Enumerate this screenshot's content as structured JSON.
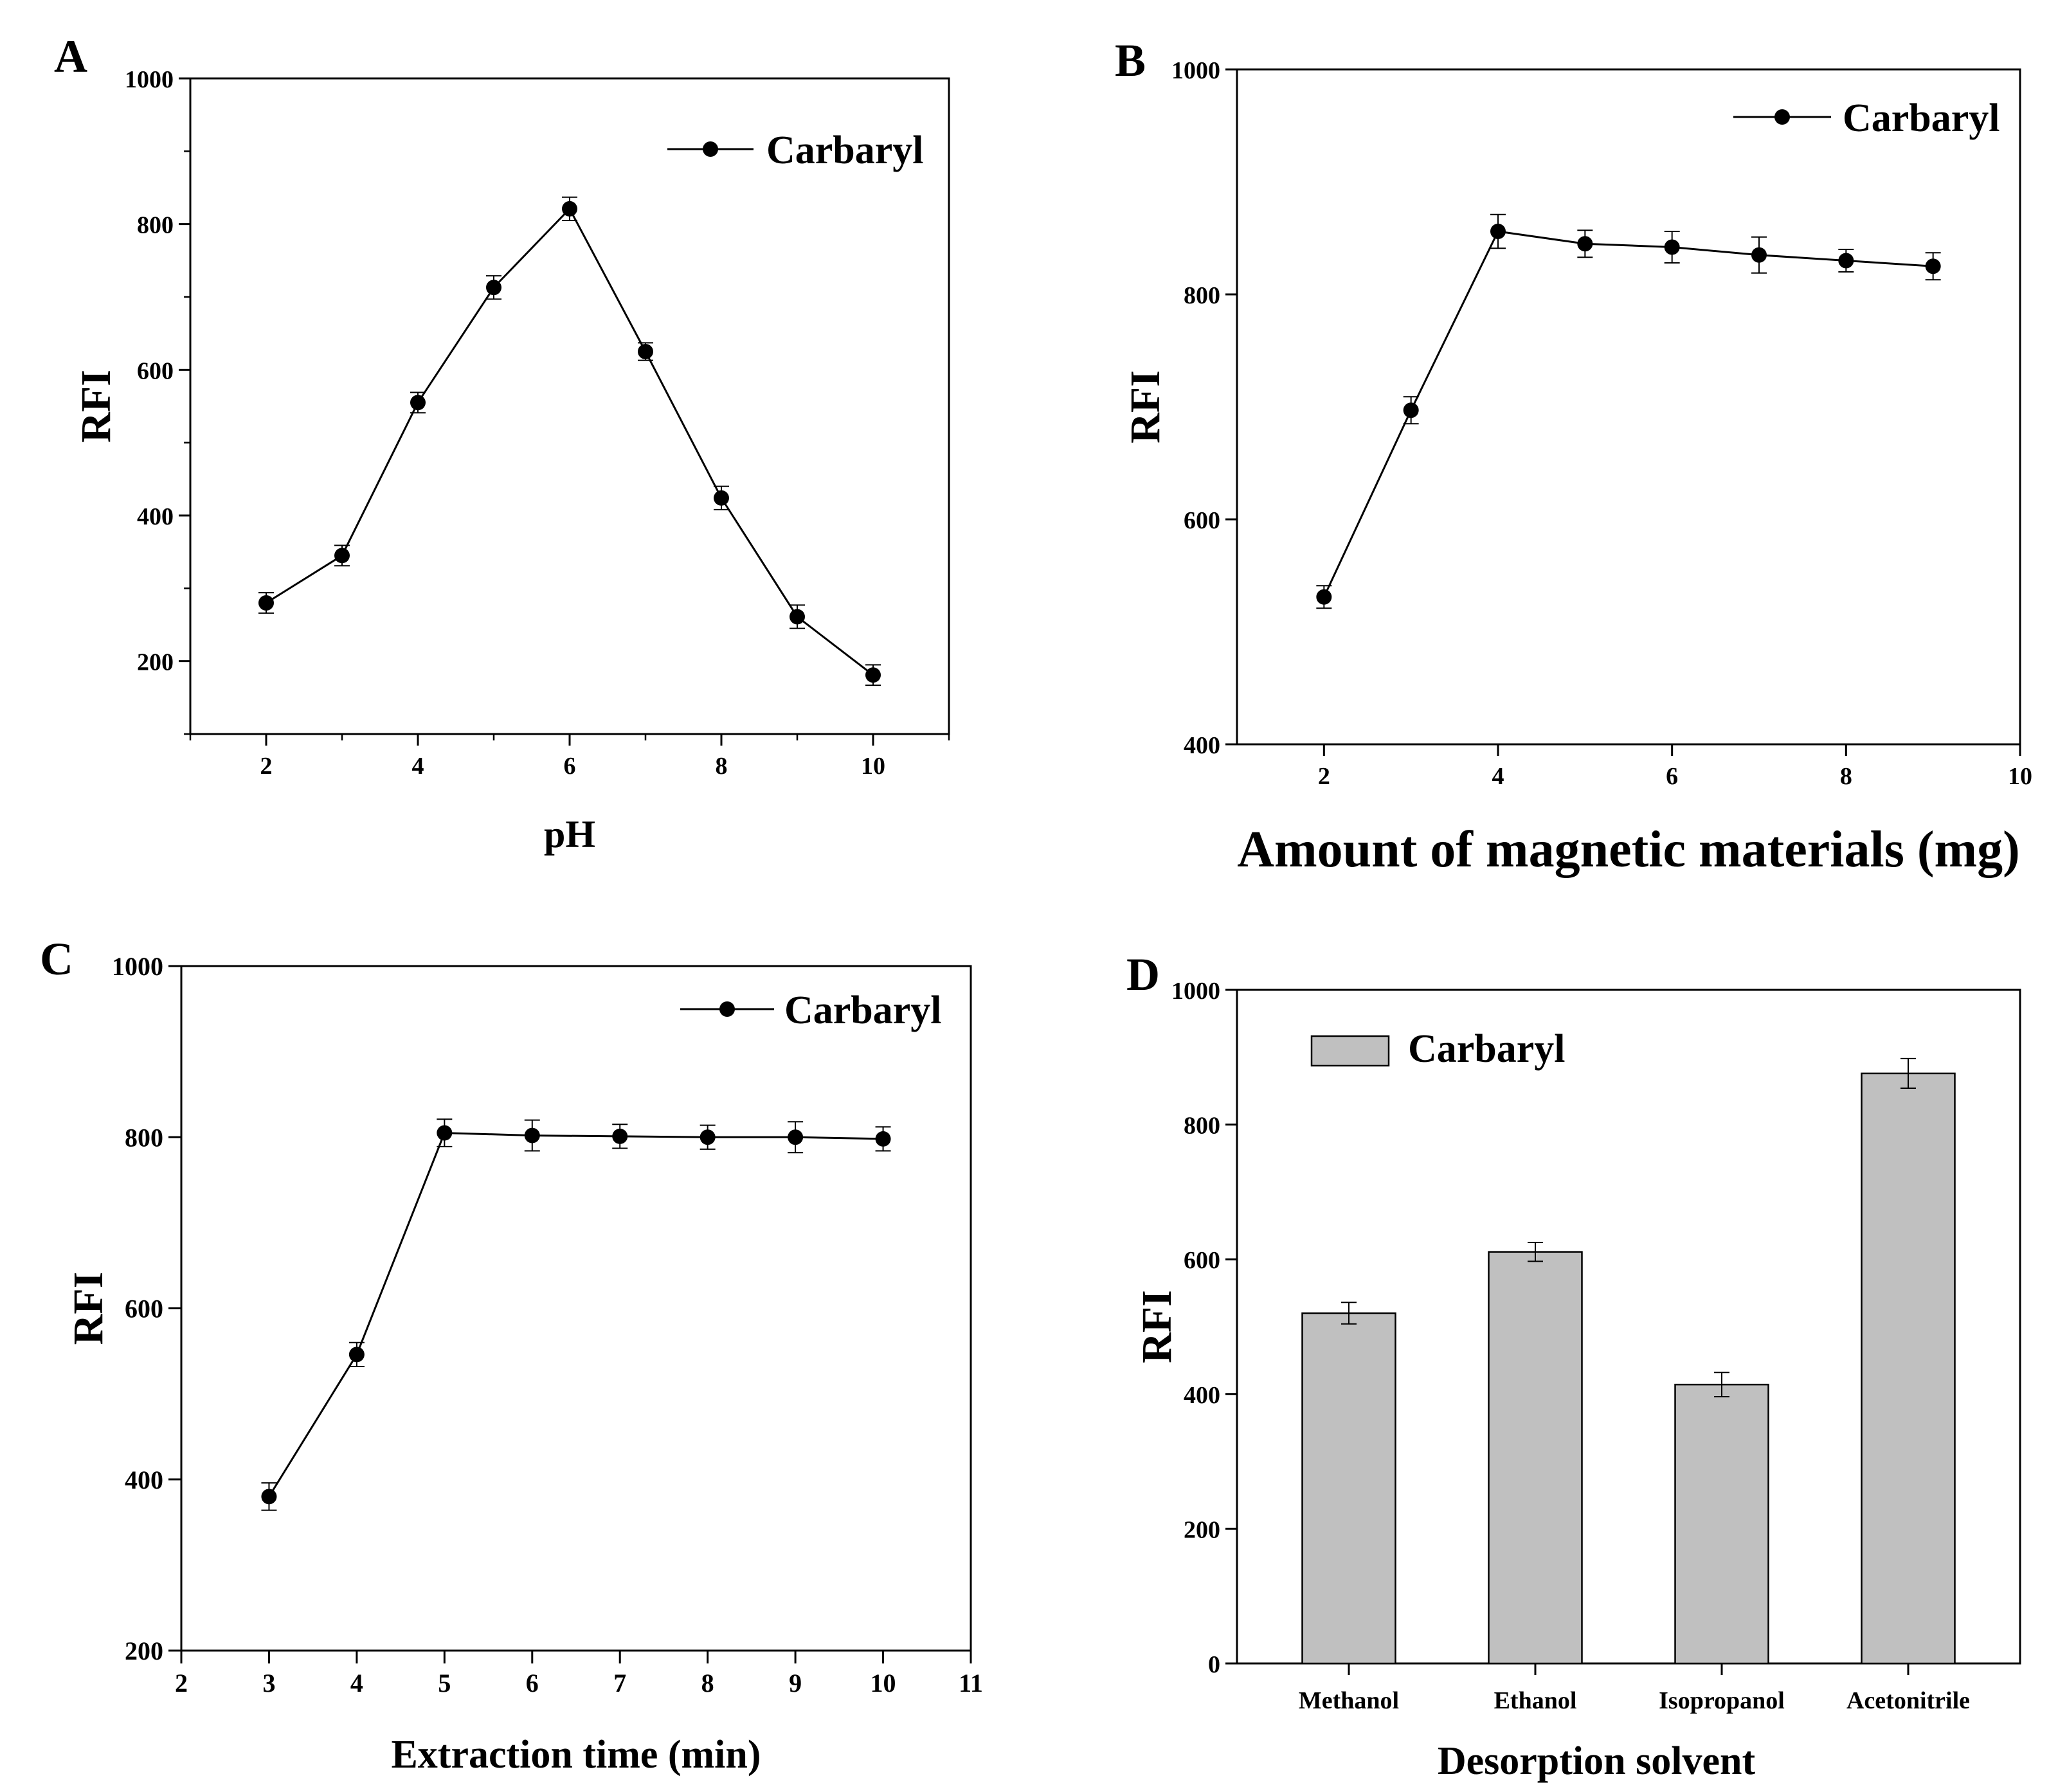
{
  "chart_data": [
    {
      "panel": "A",
      "type": "line",
      "x": [
        2,
        3,
        4,
        5,
        6,
        7,
        8,
        9,
        10
      ],
      "series": [
        {
          "name": "Carbaryl",
          "values": [
            280,
            345,
            555,
            713,
            821,
            625,
            424,
            261,
            181
          ],
          "errors": [
            14,
            14,
            14,
            16,
            16,
            12,
            16,
            16,
            14
          ]
        }
      ],
      "xlabel": "pH",
      "ylabel": "RFI",
      "xlim": [
        1,
        11
      ],
      "ylim": [
        100,
        1000
      ],
      "xticks": [
        2,
        4,
        6,
        8,
        10
      ],
      "yticks": [
        200,
        400,
        600,
        800,
        1000
      ],
      "legend": "top-right"
    },
    {
      "panel": "B",
      "type": "line",
      "x": [
        2,
        3,
        4,
        5,
        6,
        7,
        8,
        9
      ],
      "series": [
        {
          "name": "Carbaryl",
          "values": [
            531,
            697,
            856,
            845,
            842,
            835,
            830,
            825
          ],
          "errors": [
            10,
            12,
            15,
            12,
            14,
            16,
            10,
            12
          ]
        }
      ],
      "xlabel": "Amount of magnetic materials (mg)",
      "ylabel": "RFI",
      "xlim": [
        1,
        10
      ],
      "ylim": [
        400,
        1000
      ],
      "xticks": [
        2,
        4,
        6,
        8,
        10
      ],
      "yticks": [
        400,
        600,
        800,
        1000
      ],
      "legend": "top-right"
    },
    {
      "panel": "C",
      "type": "line",
      "x": [
        3,
        4,
        5,
        6,
        7,
        8,
        9,
        10
      ],
      "series": [
        {
          "name": "Carbaryl",
          "values": [
            380,
            546,
            805,
            802,
            801,
            800,
            800,
            798
          ],
          "errors": [
            16,
            14,
            16,
            18,
            14,
            14,
            18,
            14
          ]
        }
      ],
      "xlabel": "Extraction time (min)",
      "ylabel": "RFI",
      "xlim": [
        2,
        11
      ],
      "ylim": [
        200,
        1000
      ],
      "xticks": [
        2,
        3,
        4,
        5,
        6,
        7,
        8,
        9,
        10,
        11
      ],
      "yticks": [
        200,
        400,
        600,
        800,
        1000
      ],
      "legend": "top-right"
    },
    {
      "panel": "D",
      "type": "bar",
      "categories": [
        "Methanol",
        "Ethanol",
        "Isopropanol",
        "Acetonitrile"
      ],
      "series": [
        {
          "name": "Carbaryl",
          "values": [
            520,
            611,
            414,
            876
          ],
          "errors": [
            16,
            14,
            18,
            22
          ]
        }
      ],
      "xlabel": "Desorption solvent",
      "ylabel": "RFI",
      "ylim": [
        0,
        1000
      ],
      "yticks": [
        0,
        200,
        400,
        600,
        800,
        1000
      ],
      "legend": "top-left",
      "bar_color": "#c0c0c0"
    }
  ]
}
